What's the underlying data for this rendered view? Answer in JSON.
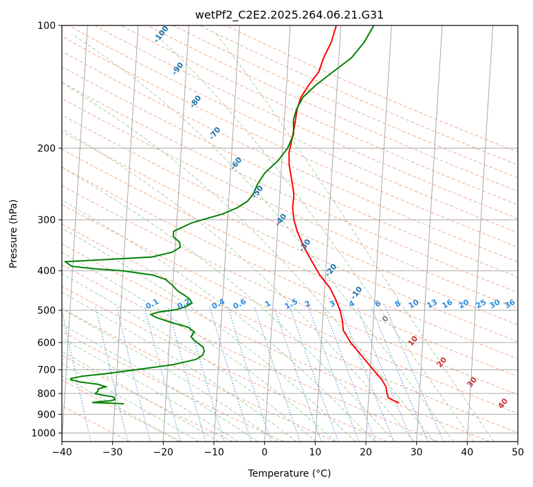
{
  "chart_data": {
    "type": "line",
    "title": "wetPf2_C2E2.2025.264.06.21.G31",
    "xlabel": "Temperature (°C)",
    "ylabel": "Pressure (hPa)",
    "xlim": [
      -40,
      50
    ],
    "ylim": [
      1050,
      100
    ],
    "y_scale": "log",
    "grid": true,
    "x_ticks": [
      -40,
      -30,
      -20,
      -10,
      0,
      10,
      20,
      30,
      40,
      50
    ],
    "y_ticks": [
      100,
      200,
      300,
      400,
      500,
      600,
      700,
      800,
      900,
      1000
    ],
    "series": [
      {
        "role": "temperature",
        "color": "#ff0000",
        "points": [
          [
            844,
            26.1
          ],
          [
            835,
            25.2
          ],
          [
            820,
            23.9
          ],
          [
            800,
            23.6
          ],
          [
            770,
            23.3
          ],
          [
            740,
            22.4
          ],
          [
            700,
            20.6
          ],
          [
            650,
            18.3
          ],
          [
            600,
            15.8
          ],
          [
            560,
            14.2
          ],
          [
            530,
            13.9
          ],
          [
            500,
            13.3
          ],
          [
            470,
            12.3
          ],
          [
            440,
            11.0
          ],
          [
            410,
            8.9
          ],
          [
            380,
            7.2
          ],
          [
            350,
            5.4
          ],
          [
            320,
            3.9
          ],
          [
            300,
            3.1
          ],
          [
            280,
            2.7
          ],
          [
            260,
            2.8
          ],
          [
            240,
            2.2
          ],
          [
            220,
            1.5
          ],
          [
            205,
            1.3
          ],
          [
            195,
            1.6
          ],
          [
            180,
            2.0
          ],
          [
            170,
            2.2
          ],
          [
            160,
            2.4
          ],
          [
            150,
            3.0
          ],
          [
            140,
            4.4
          ],
          [
            130,
            6.2
          ],
          [
            120,
            7.0
          ],
          [
            110,
            8.3
          ],
          [
            100,
            9.1
          ]
        ]
      },
      {
        "role": "dewpoint",
        "color": "#008000",
        "points": [
          [
            848,
            -28.2
          ],
          [
            845,
            -31.0
          ],
          [
            842,
            -34.5
          ],
          [
            838,
            -33.2
          ],
          [
            834,
            -31.0
          ],
          [
            828,
            -30.0
          ],
          [
            820,
            -30.2
          ],
          [
            815,
            -30.5
          ],
          [
            808,
            -32.5
          ],
          [
            800,
            -34.0
          ],
          [
            790,
            -33.5
          ],
          [
            780,
            -33.5
          ],
          [
            770,
            -32.0
          ],
          [
            760,
            -33.5
          ],
          [
            750,
            -37.0
          ],
          [
            740,
            -39.0
          ],
          [
            735,
            -39.0
          ],
          [
            725,
            -36.5
          ],
          [
            715,
            -32.0
          ],
          [
            700,
            -26.5
          ],
          [
            680,
            -19.0
          ],
          [
            660,
            -14.5
          ],
          [
            645,
            -13.3
          ],
          [
            630,
            -13.0
          ],
          [
            615,
            -13.3
          ],
          [
            600,
            -14.5
          ],
          [
            590,
            -15.3
          ],
          [
            580,
            -15.8
          ],
          [
            565,
            -15.2
          ],
          [
            550,
            -16.5
          ],
          [
            535,
            -20.0
          ],
          [
            520,
            -23.0
          ],
          [
            512,
            -24.0
          ],
          [
            505,
            -22.5
          ],
          [
            498,
            -19.0
          ],
          [
            490,
            -17.2
          ],
          [
            480,
            -16.0
          ],
          [
            470,
            -16.5
          ],
          [
            460,
            -17.5
          ],
          [
            448,
            -19.0
          ],
          [
            435,
            -20.0
          ],
          [
            420,
            -21.5
          ],
          [
            410,
            -24.0
          ],
          [
            400,
            -30.0
          ],
          [
            395,
            -36.0
          ],
          [
            390,
            -40.2
          ],
          [
            380,
            -41.5
          ],
          [
            375,
            -33.0
          ],
          [
            370,
            -24.5
          ],
          [
            360,
            -20.5
          ],
          [
            350,
            -19.0
          ],
          [
            340,
            -19.2
          ],
          [
            330,
            -20.5
          ],
          [
            320,
            -20.5
          ],
          [
            305,
            -17.0
          ],
          [
            290,
            -11.0
          ],
          [
            280,
            -8.2
          ],
          [
            270,
            -6.3
          ],
          [
            260,
            -5.3
          ],
          [
            245,
            -4.5
          ],
          [
            230,
            -3.2
          ],
          [
            215,
            -0.8
          ],
          [
            200,
            1.0
          ],
          [
            185,
            2.0
          ],
          [
            170,
            1.8
          ],
          [
            160,
            2.3
          ],
          [
            150,
            3.4
          ],
          [
            140,
            5.8
          ],
          [
            130,
            9.0
          ],
          [
            120,
            12.5
          ],
          [
            110,
            14.8
          ],
          [
            100,
            16.5
          ]
        ]
      }
    ],
    "dry_adiabat_labels": [
      "-100",
      "-90",
      "-80",
      "-70",
      "-60",
      "-50",
      "-40",
      "-30",
      "-20",
      "-10"
    ],
    "moist_adiabat_labels": [
      "0",
      "10",
      "20",
      "30",
      "40"
    ],
    "mixing_ratio_labels": [
      "0.1",
      "0.2",
      "0.4",
      "0.6",
      "1",
      "1.5",
      "2",
      "3",
      "4",
      "6",
      "8",
      "10",
      "13",
      "16",
      "20",
      "25",
      "30",
      "36"
    ],
    "colors": {
      "isotherm": "#a8a8a8",
      "isobar": "#a8a8a8",
      "dry_adiabat": "#f4a88a",
      "moist_adiabat": "#a6cfa6",
      "mixing_ratio": "#2b7fd4",
      "dry_label": "#1f6fa8",
      "mix_label": "#2b8be0",
      "moist_label": "#c83030",
      "moist_zero_label": "#808080",
      "tan_curve": "#c8aa88"
    }
  }
}
